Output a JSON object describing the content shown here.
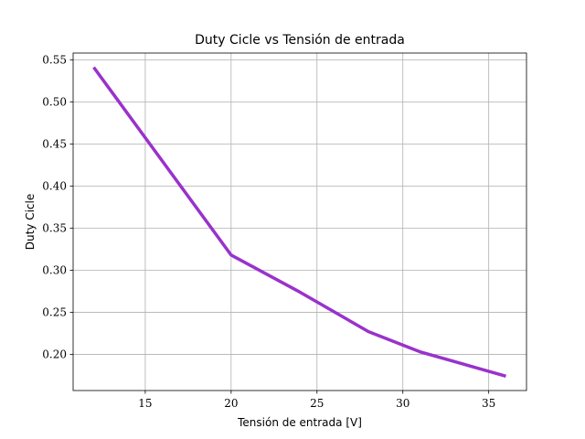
{
  "chart_data": {
    "type": "line",
    "title": "Duty Cicle vs Tensión de entrada",
    "xlabel": "Tensión de entrada [V]",
    "ylabel": "Duty Cicle",
    "xlim": [
      10.8,
      37.2
    ],
    "ylim": [
      0.157,
      0.558
    ],
    "xticks": [
      15,
      20,
      25,
      30,
      35
    ],
    "xtick_labels": [
      "15",
      "20",
      "25",
      "30",
      "35"
    ],
    "yticks": [
      0.2,
      0.25,
      0.3,
      0.35,
      0.4,
      0.45,
      0.5,
      0.55
    ],
    "ytick_labels": [
      "0.20",
      "0.25",
      "0.30",
      "0.35",
      "0.40",
      "0.45",
      "0.50",
      "0.55"
    ],
    "grid": true,
    "series": [
      {
        "color": "#9932cc",
        "x": [
          12,
          20,
          24,
          28,
          31,
          36
        ],
        "y": [
          0.541,
          0.318,
          0.274,
          0.227,
          0.203,
          0.174
        ]
      }
    ]
  }
}
